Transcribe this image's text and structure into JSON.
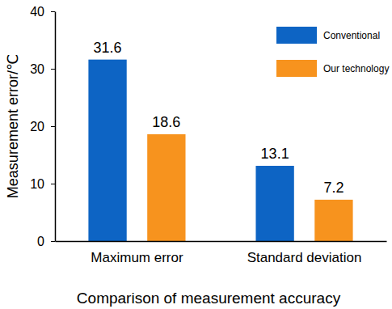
{
  "chart_data": {
    "type": "bar",
    "x_label": "Comparison of measurement accuracy",
    "y_label": "Measurement error/℃",
    "categories": [
      "Maximum error",
      "Standard deviation"
    ],
    "series": [
      {
        "name": "Conventional",
        "color": "#0d64c4",
        "values": [
          31.6,
          13.1
        ]
      },
      {
        "name": "Our technology",
        "color": "#f7931e",
        "values": [
          18.6,
          7.2
        ]
      }
    ],
    "ylim": [
      0,
      40
    ],
    "yticks": [
      0,
      10,
      20,
      30,
      40
    ],
    "grid": false,
    "legend": "top-right",
    "data_labels": true
  }
}
